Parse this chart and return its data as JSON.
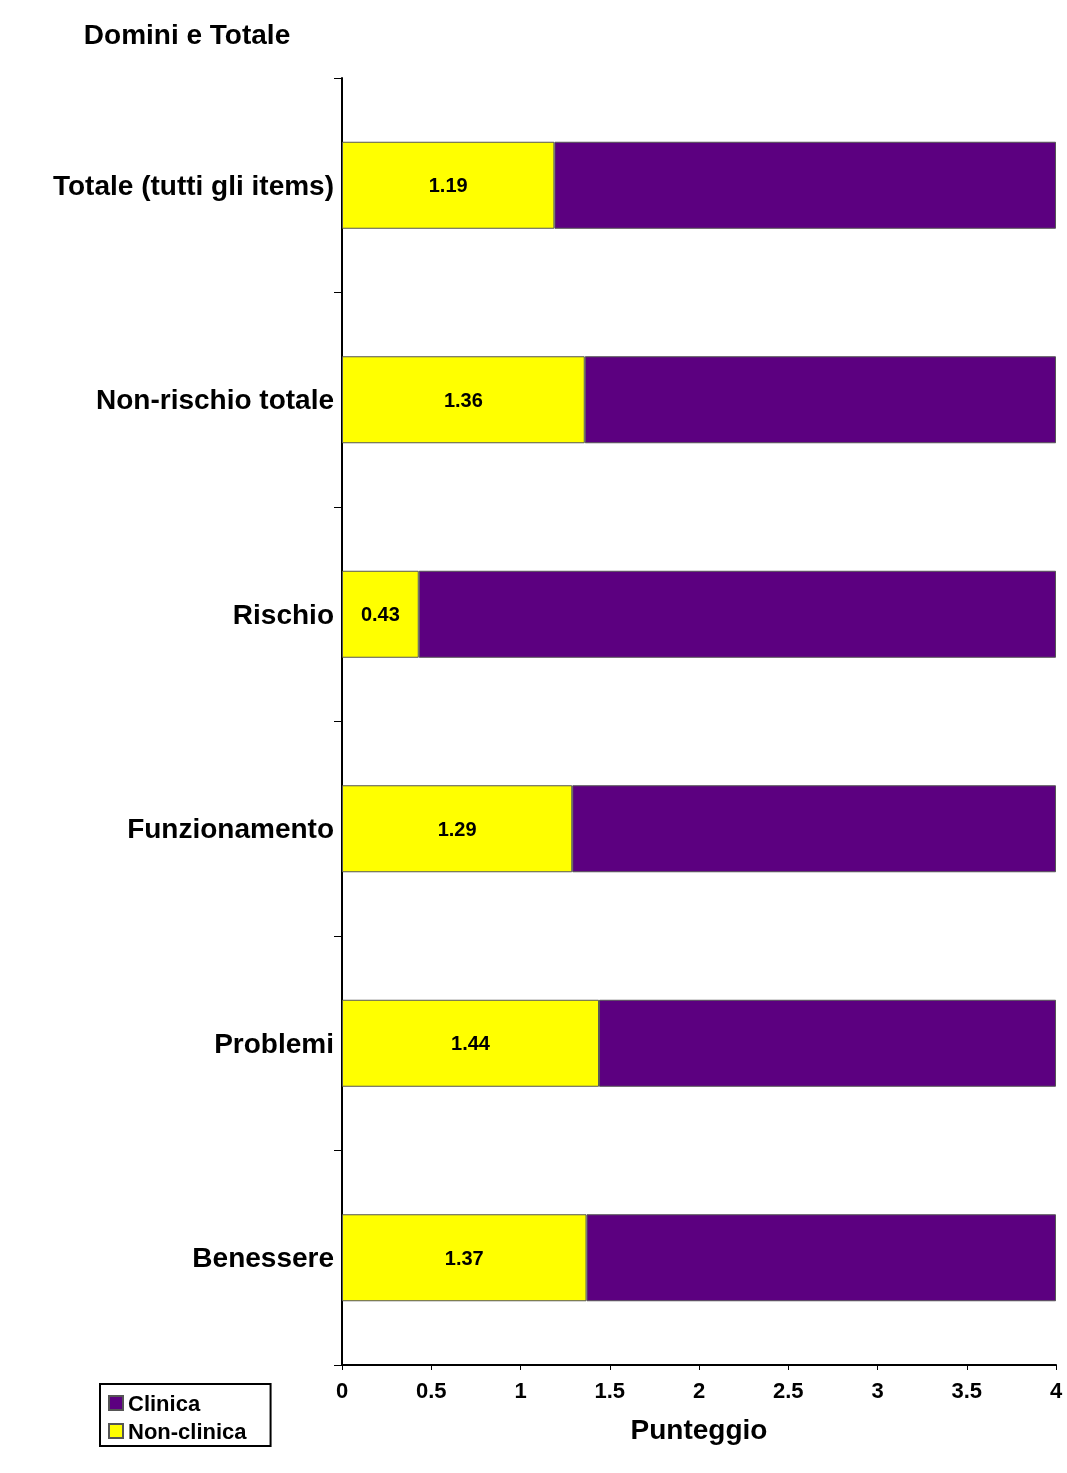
{
  "chart_data": {
    "type": "bar",
    "orientation": "horizontal",
    "stacked": true,
    "ylabel": "Domini e Totale",
    "xlabel": "Punteggio",
    "categories": [
      "Totale (tutti gli items)",
      "Non-rischio totale",
      "Rischio",
      "Funzionamento",
      "Problemi",
      "Benessere"
    ],
    "series": [
      {
        "name": "Non-clinica",
        "color": "#ffff00",
        "values": [
          1.19,
          1.36,
          0.43,
          1.29,
          1.44,
          1.37
        ],
        "value_labels": [
          "1.19",
          "1.36",
          "0.43",
          "1.29",
          "1.44",
          "1.37"
        ]
      },
      {
        "name": "Clinica",
        "color": "#5c0080",
        "values": [
          2.81,
          2.64,
          3.57,
          2.71,
          2.56,
          2.63
        ]
      }
    ],
    "xlim": [
      0,
      4
    ],
    "xticks": [
      0,
      0.5,
      1,
      1.5,
      2,
      2.5,
      3,
      3.5,
      4
    ],
    "grid": false,
    "legend": "bottom left"
  }
}
